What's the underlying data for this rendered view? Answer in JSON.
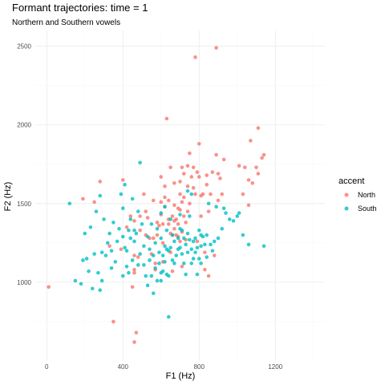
{
  "chart_data": {
    "type": "scatter",
    "title": "Formant trajectories: time = 1",
    "subtitle": "Northern and Southern vowels",
    "xlabel": "F1 (Hz)",
    "ylabel": "F2 (Hz)",
    "xlim": [
      -60,
      1460
    ],
    "ylim": [
      500,
      2600
    ],
    "x_ticks": [
      0,
      400,
      800,
      1200
    ],
    "y_ticks": [
      1000,
      1500,
      2000,
      2500
    ],
    "grid": true,
    "legend": {
      "title": "accent",
      "position": "right"
    },
    "series": [
      {
        "name": "North",
        "color": "#F8766D",
        "points": [
          [
            10,
            970
          ],
          [
            190,
            1530
          ],
          [
            250,
            1510
          ],
          [
            280,
            1640
          ],
          [
            330,
            1230
          ],
          [
            350,
            750
          ],
          [
            390,
            1210
          ],
          [
            400,
            1650
          ],
          [
            420,
            1350
          ],
          [
            440,
            1420
          ],
          [
            450,
            970
          ],
          [
            460,
            1390
          ],
          [
            460,
            1170
          ],
          [
            460,
            1080
          ],
          [
            460,
            1060
          ],
          [
            470,
            680
          ],
          [
            460,
            620
          ],
          [
            480,
            1160
          ],
          [
            490,
            1330
          ],
          [
            490,
            1420
          ],
          [
            510,
            1560
          ],
          [
            520,
            1450
          ],
          [
            520,
            1300
          ],
          [
            530,
            1410
          ],
          [
            540,
            1280
          ],
          [
            550,
            1180
          ],
          [
            560,
            1520
          ],
          [
            560,
            1280
          ],
          [
            570,
            1120
          ],
          [
            570,
            1080
          ],
          [
            580,
            1380
          ],
          [
            580,
            1300
          ],
          [
            590,
            1360
          ],
          [
            600,
            1670
          ],
          [
            600,
            1510
          ],
          [
            600,
            1430
          ],
          [
            610,
            1370
          ],
          [
            610,
            1250
          ],
          [
            610,
            1130
          ],
          [
            620,
            1610
          ],
          [
            620,
            1540
          ],
          [
            620,
            1480
          ],
          [
            630,
            2040
          ],
          [
            640,
            1520
          ],
          [
            640,
            1400
          ],
          [
            640,
            1370
          ],
          [
            650,
            1730
          ],
          [
            650,
            1310
          ],
          [
            650,
            1190
          ],
          [
            660,
            1420
          ],
          [
            660,
            1300
          ],
          [
            660,
            1070
          ],
          [
            670,
            1630
          ],
          [
            670,
            1490
          ],
          [
            670,
            1390
          ],
          [
            670,
            1340
          ],
          [
            680,
            1400
          ],
          [
            680,
            1300
          ],
          [
            690,
            1470
          ],
          [
            690,
            1370
          ],
          [
            690,
            1290
          ],
          [
            700,
            1640
          ],
          [
            700,
            1560
          ],
          [
            700,
            1460
          ],
          [
            700,
            1260
          ],
          [
            710,
            1730
          ],
          [
            710,
            1510
          ],
          [
            710,
            1320
          ],
          [
            710,
            1100
          ],
          [
            720,
            1690
          ],
          [
            720,
            1540
          ],
          [
            720,
            1420
          ],
          [
            730,
            1380
          ],
          [
            730,
            1270
          ],
          [
            740,
            1740
          ],
          [
            740,
            1610
          ],
          [
            740,
            1450
          ],
          [
            750,
            1820
          ],
          [
            750,
            1500
          ],
          [
            760,
            1670
          ],
          [
            770,
            1730
          ],
          [
            770,
            1600
          ],
          [
            780,
            2430
          ],
          [
            780,
            1560
          ],
          [
            790,
            1700
          ],
          [
            790,
            1260
          ],
          [
            800,
            1880
          ],
          [
            800,
            1670
          ],
          [
            810,
            1550
          ],
          [
            810,
            1420
          ],
          [
            820,
            1560
          ],
          [
            830,
            1190
          ],
          [
            830,
            1080
          ],
          [
            840,
            1680
          ],
          [
            840,
            1620
          ],
          [
            850,
            1450
          ],
          [
            850,
            1040
          ],
          [
            860,
            1560
          ],
          [
            870,
            1700
          ],
          [
            880,
            1170
          ],
          [
            890,
            2490
          ],
          [
            890,
            1810
          ],
          [
            900,
            1690
          ],
          [
            900,
            1520
          ],
          [
            910,
            1660
          ],
          [
            920,
            1560
          ],
          [
            930,
            1780
          ],
          [
            1010,
            1740
          ],
          [
            1030,
            1560
          ],
          [
            1040,
            1730
          ],
          [
            1060,
            1650
          ],
          [
            1060,
            1490
          ],
          [
            1070,
            1900
          ],
          [
            1080,
            1630
          ],
          [
            1100,
            1730
          ],
          [
            1110,
            1690
          ],
          [
            1110,
            1980
          ],
          [
            1130,
            1790
          ],
          [
            1140,
            1810
          ]
        ]
      },
      {
        "name": "South",
        "color": "#00BFC4",
        "points": [
          [
            120,
            1500
          ],
          [
            150,
            1010
          ],
          [
            180,
            990
          ],
          [
            190,
            1140
          ],
          [
            200,
            1310
          ],
          [
            210,
            1150
          ],
          [
            220,
            1070
          ],
          [
            230,
            1350
          ],
          [
            240,
            960
          ],
          [
            250,
            1180
          ],
          [
            260,
            1450
          ],
          [
            270,
            1060
          ],
          [
            280,
            950
          ],
          [
            280,
            1550
          ],
          [
            290,
            1010
          ],
          [
            290,
            1190
          ],
          [
            300,
            1400
          ],
          [
            310,
            1170
          ],
          [
            320,
            1250
          ],
          [
            330,
            1310
          ],
          [
            340,
            1090
          ],
          [
            340,
            1200
          ],
          [
            350,
            1380
          ],
          [
            360,
            1130
          ],
          [
            370,
            1260
          ],
          [
            380,
            1340
          ],
          [
            390,
            1560
          ],
          [
            400,
            1470
          ],
          [
            400,
            1290
          ],
          [
            400,
            1040
          ],
          [
            410,
            1620
          ],
          [
            410,
            1220
          ],
          [
            420,
            1200
          ],
          [
            420,
            1100
          ],
          [
            430,
            1330
          ],
          [
            430,
            1060
          ],
          [
            440,
            1400
          ],
          [
            440,
            1280
          ],
          [
            450,
            1530
          ],
          [
            450,
            1140
          ],
          [
            460,
            1330
          ],
          [
            460,
            1260
          ],
          [
            470,
            1310
          ],
          [
            480,
            1450
          ],
          [
            480,
            1110
          ],
          [
            490,
            1180
          ],
          [
            490,
            1760
          ],
          [
            500,
            1370
          ],
          [
            510,
            1230
          ],
          [
            510,
            1110
          ],
          [
            520,
            1040
          ],
          [
            530,
            1290
          ],
          [
            530,
            980
          ],
          [
            540,
            1140
          ],
          [
            540,
            1210
          ],
          [
            550,
            1040
          ],
          [
            550,
            1370
          ],
          [
            560,
            1170
          ],
          [
            560,
            930
          ],
          [
            570,
            1250
          ],
          [
            570,
            1090
          ],
          [
            580,
            1340
          ],
          [
            580,
            1010
          ],
          [
            590,
            1120
          ],
          [
            590,
            1190
          ],
          [
            600,
            1440
          ],
          [
            600,
            1280
          ],
          [
            600,
            1060
          ],
          [
            600,
            1010
          ],
          [
            610,
            1170
          ],
          [
            610,
            1070
          ],
          [
            620,
            1480
          ],
          [
            620,
            1230
          ],
          [
            620,
            1130
          ],
          [
            630,
            1330
          ],
          [
            630,
            1210
          ],
          [
            630,
            1050
          ],
          [
            640,
            1200
          ],
          [
            640,
            1040
          ],
          [
            640,
            780
          ],
          [
            650,
            1400
          ],
          [
            650,
            1220
          ],
          [
            660,
            1140
          ],
          [
            660,
            1300
          ],
          [
            670,
            1120
          ],
          [
            670,
            1260
          ],
          [
            680,
            1170
          ],
          [
            690,
            1280
          ],
          [
            690,
            1210
          ],
          [
            700,
            1430
          ],
          [
            700,
            1340
          ],
          [
            700,
            1220
          ],
          [
            710,
            1330
          ],
          [
            710,
            1180
          ],
          [
            720,
            1280
          ],
          [
            720,
            1120
          ],
          [
            730,
            1240
          ],
          [
            730,
            1050
          ],
          [
            740,
            1310
          ],
          [
            740,
            1190
          ],
          [
            740,
            1580
          ],
          [
            750,
            1270
          ],
          [
            750,
            1420
          ],
          [
            760,
            1210
          ],
          [
            760,
            1120
          ],
          [
            760,
            1560
          ],
          [
            770,
            1260
          ],
          [
            770,
            1150
          ],
          [
            780,
            1280
          ],
          [
            780,
            1190
          ],
          [
            790,
            1220
          ],
          [
            790,
            1050
          ],
          [
            800,
            1330
          ],
          [
            800,
            1150
          ],
          [
            810,
            1300
          ],
          [
            810,
            1230
          ],
          [
            810,
            1120
          ],
          [
            820,
            1290
          ],
          [
            830,
            1240
          ],
          [
            840,
            1300
          ],
          [
            840,
            1160
          ],
          [
            850,
            1500
          ],
          [
            860,
            1240
          ],
          [
            870,
            1200
          ],
          [
            880,
            1260
          ],
          [
            890,
            1480
          ],
          [
            900,
            1280
          ],
          [
            920,
            1340
          ],
          [
            930,
            1470
          ],
          [
            940,
            1440
          ],
          [
            960,
            1400
          ],
          [
            980,
            1390
          ],
          [
            1000,
            1420
          ],
          [
            1010,
            1440
          ],
          [
            1030,
            1300
          ],
          [
            1060,
            1240
          ],
          [
            1140,
            1230
          ]
        ]
      }
    ]
  }
}
